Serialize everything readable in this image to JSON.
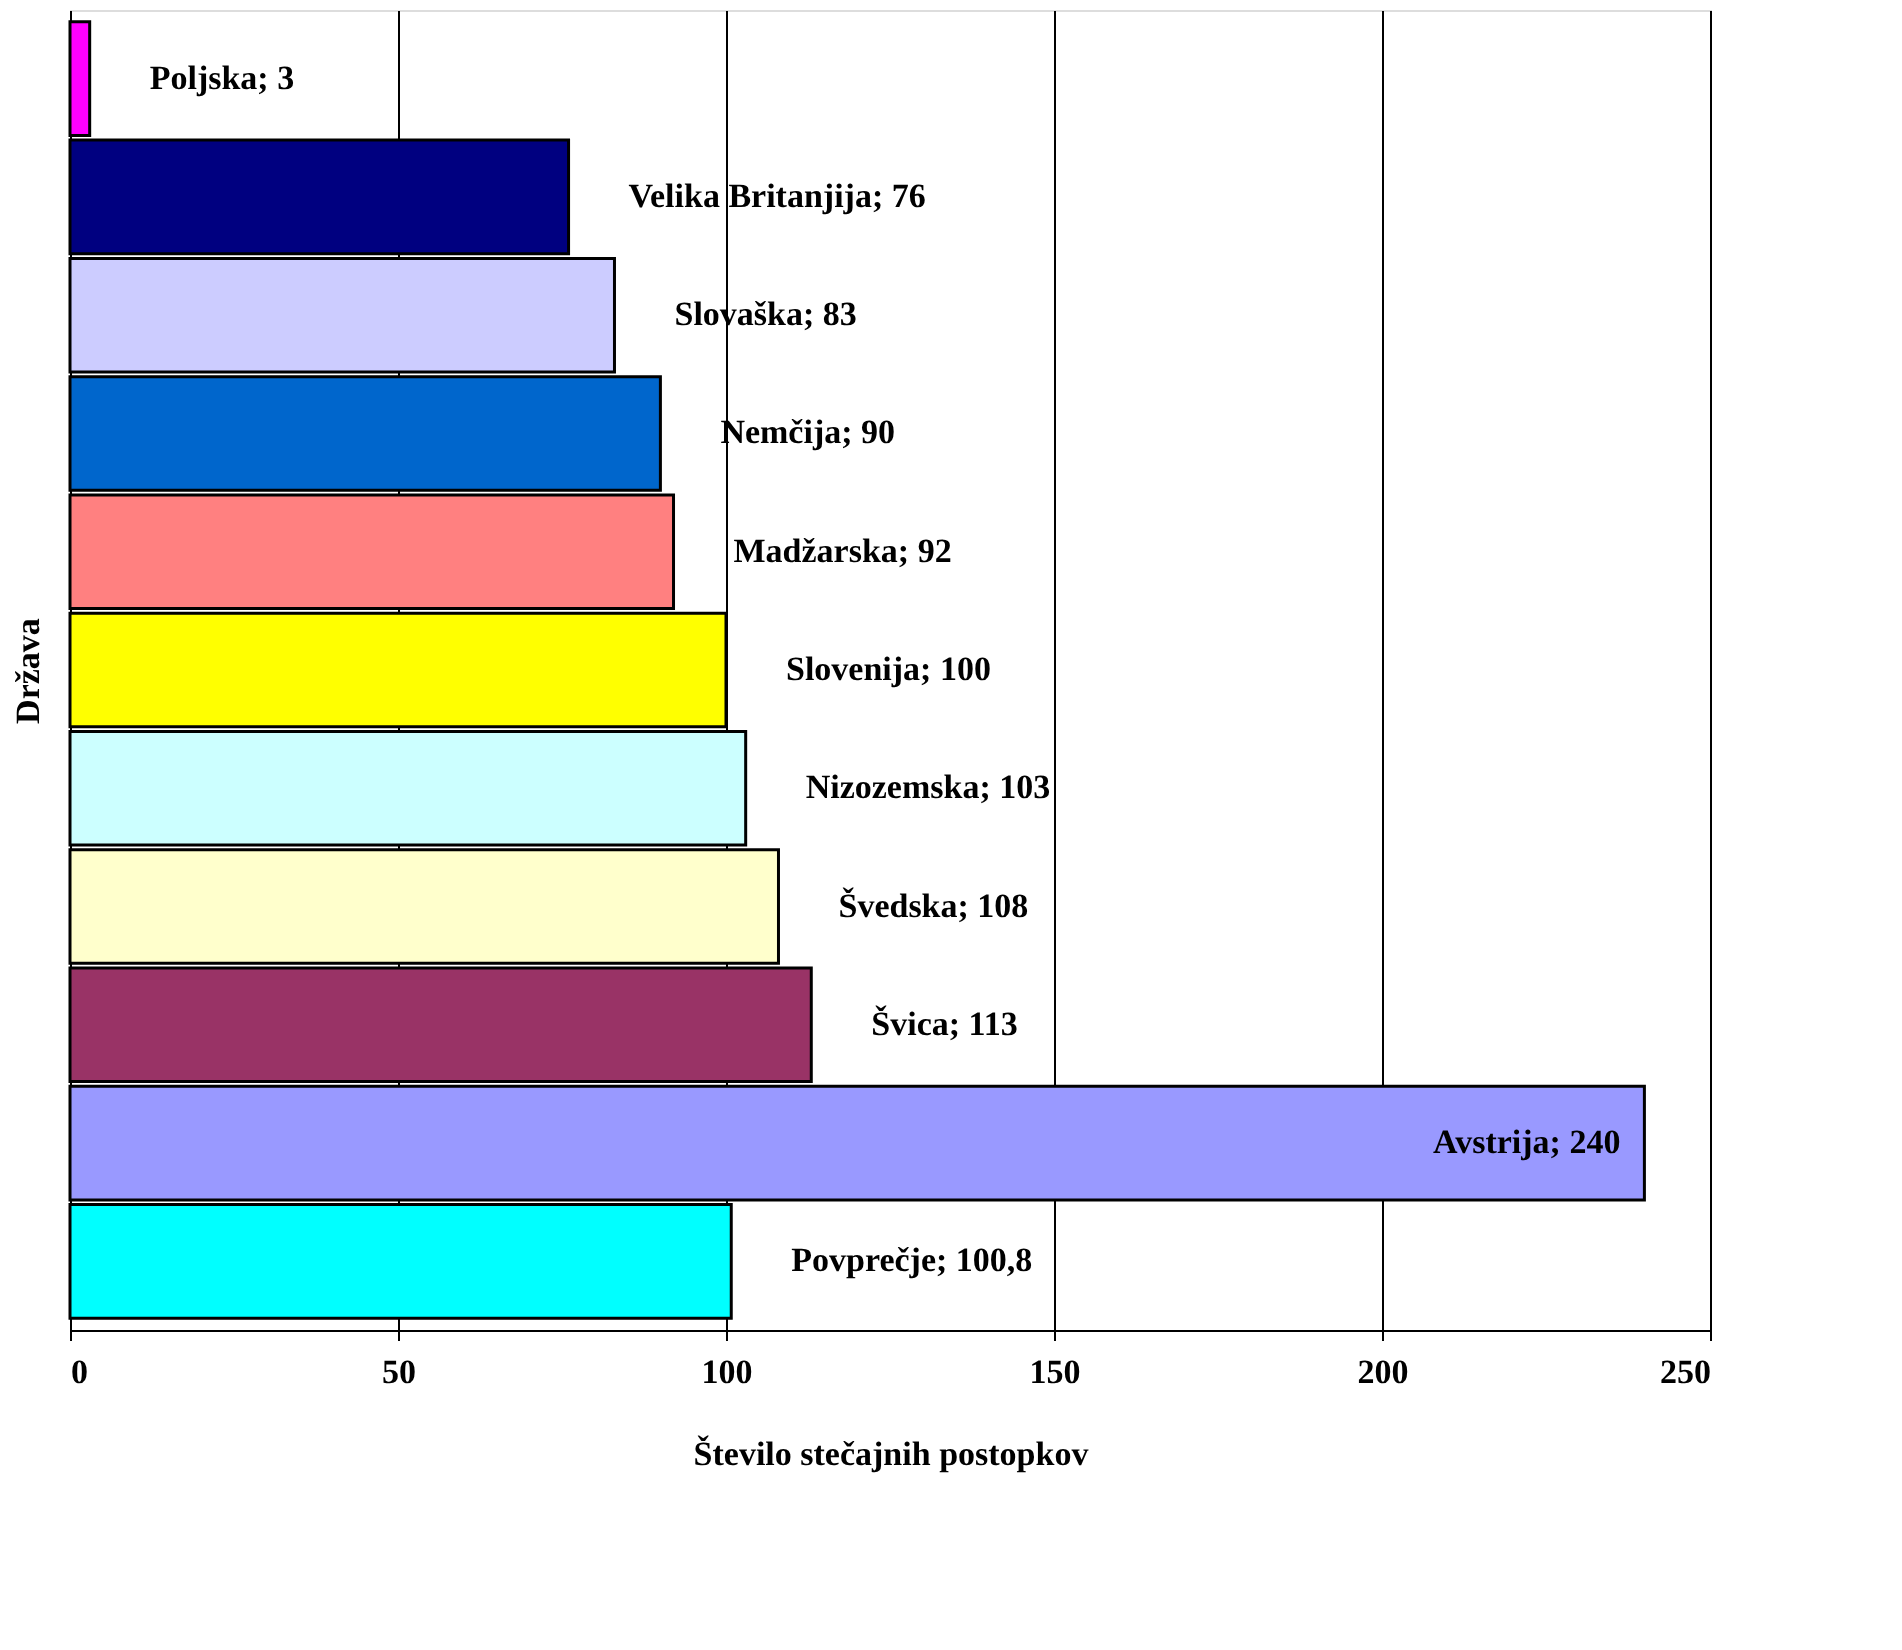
{
  "chart_data": {
    "type": "bar",
    "orientation": "horizontal",
    "xlabel": "Število stečajnih postopkov",
    "ylabel": "Država",
    "categories": [
      null,
      null,
      null,
      null,
      null,
      null,
      null,
      null,
      null,
      null,
      null
    ],
    "values": [
      3,
      76,
      83,
      90,
      92,
      100,
      103,
      108,
      113,
      240,
      100.8
    ],
    "colors": [
      "#ff00ff",
      "#000080",
      "#ccccff",
      "#0066cc",
      "#ff8080",
      "#ffff00",
      "#ccffff",
      "#ffffcc",
      "#993366",
      "#9999ff",
      "#00ffff"
    ],
    "value_labels": [
      "Poljska; 3",
      "Velika Britanjija; 76",
      "Slovaška; 83",
      "Nemčija; 90",
      "Madžarska; 92",
      "Slovenija; 100",
      "Nizozemska; 103",
      "Švedska; 108",
      "Švica; 113",
      "Avstrija; 240",
      "Povprečje; 100,8"
    ],
    "xlim": [
      0,
      250
    ],
    "xticks": [
      0,
      50,
      100,
      150,
      200,
      250
    ],
    "grid": "x",
    "tick_labels": "x",
    "legend": false
  }
}
